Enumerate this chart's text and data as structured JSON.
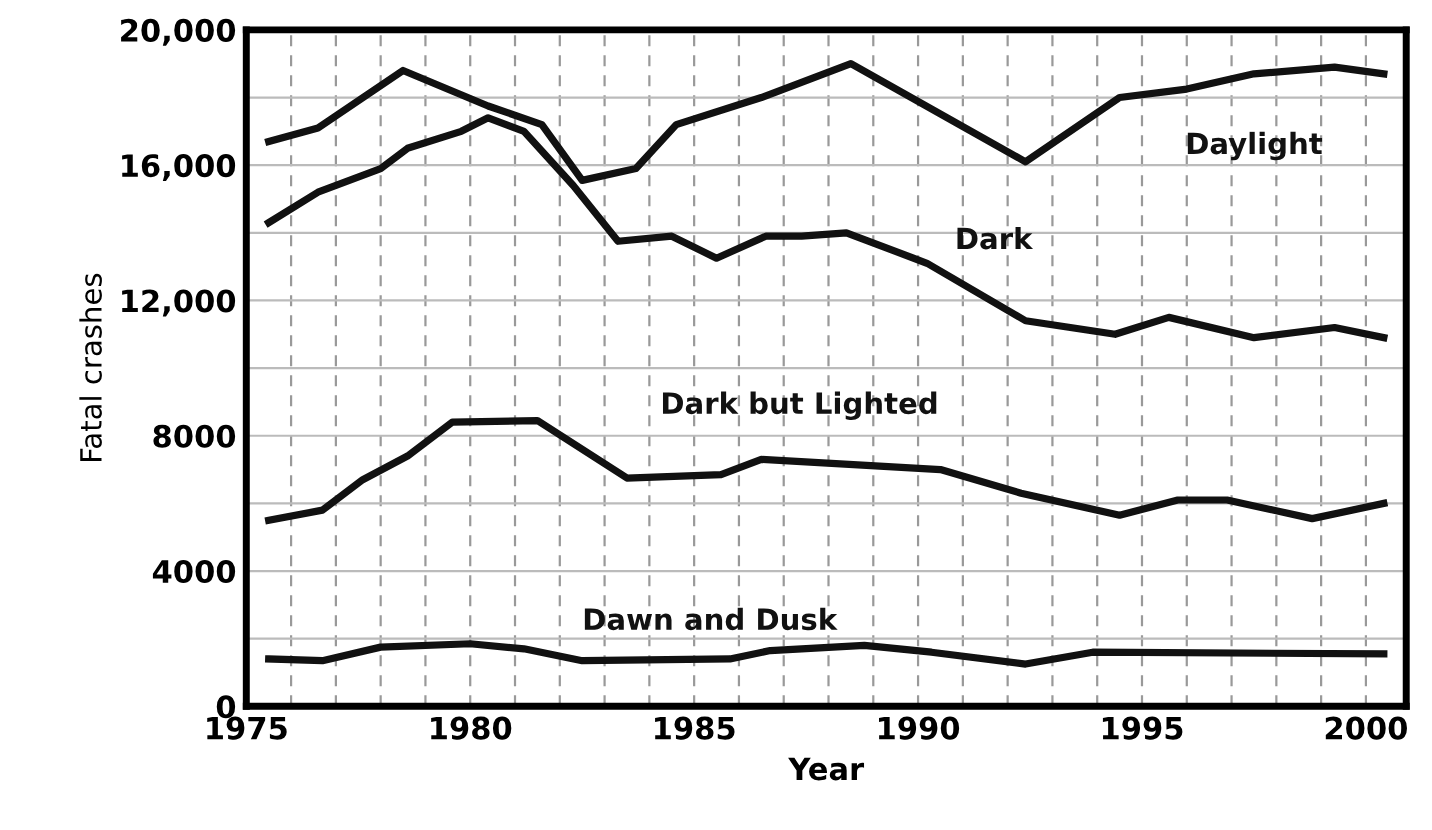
{
  "chart_data": {
    "type": "line",
    "xlabel": "Year",
    "ylabel": "Fatal crashes",
    "xlim": [
      1975,
      2000.9
    ],
    "ylim": [
      0,
      20000
    ],
    "xticks": [
      1975,
      {
        "value": 1976,
        "label": null
      },
      {
        "value": 1977,
        "label": null
      },
      {
        "value": 1978,
        "label": null
      },
      {
        "value": 1979,
        "label": null
      },
      1980,
      {
        "value": 1981,
        "label": null
      },
      {
        "value": 1982,
        "label": null
      },
      {
        "value": 1983,
        "label": null
      },
      {
        "value": 1984,
        "label": null
      },
      1985,
      {
        "value": 1986,
        "label": null
      },
      {
        "value": 1987,
        "label": null
      },
      {
        "value": 1988,
        "label": null
      },
      {
        "value": 1989,
        "label": null
      },
      1990,
      {
        "value": 1991,
        "label": null
      },
      {
        "value": 1992,
        "label": null
      },
      {
        "value": 1993,
        "label": null
      },
      {
        "value": 1994,
        "label": null
      },
      1995,
      {
        "value": 1996,
        "label": null
      },
      {
        "value": 1997,
        "label": null
      },
      {
        "value": 1998,
        "label": null
      },
      {
        "value": 1999,
        "label": null
      },
      2000
    ],
    "yticks": [
      0,
      {
        "value": 2000,
        "label": null
      },
      4000,
      {
        "value": 6000,
        "label": null
      },
      8000,
      {
        "value": 10000,
        "label": null
      },
      {
        "value": 12000,
        "label": "12,000"
      },
      {
        "value": 14000,
        "label": null
      },
      {
        "value": 16000,
        "label": "16,000"
      },
      {
        "value": 18000,
        "label": null
      },
      {
        "value": 20000,
        "label": "20,000"
      }
    ],
    "grid": true,
    "legend": false,
    "marker": "none",
    "line_style": "solid",
    "series": [
      {
        "name": "Daylight",
        "color": "#111111",
        "x": [
          1975.5,
          1976.6,
          1978.5,
          1980.4,
          1981.6,
          1982.5,
          1983.7,
          1984.6,
          1986.5,
          1988.5,
          1992.4,
          1994.5,
          1996,
          1997.5,
          1999.3,
          2000.4
        ],
        "values": [
          16700,
          17100,
          18800,
          17750,
          17200,
          15550,
          15900,
          17200,
          18000,
          19000,
          16100,
          18000,
          18250,
          18700,
          18900,
          18700
        ]
      },
      {
        "name": "Dark",
        "color": "#111111",
        "x": [
          1975.5,
          1976.6,
          1978,
          1978.6,
          1979.8,
          1980.4,
          1981.2,
          1982.3,
          1983.3,
          1984.5,
          1985.5,
          1986.6,
          1987.4,
          1988.4,
          1990.2,
          1992.4,
          1994.4,
          1995.6,
          1997.5,
          1999.3,
          2000.4
        ],
        "values": [
          14300,
          15200,
          15900,
          16500,
          17000,
          17400,
          17000,
          15400,
          13750,
          13900,
          13250,
          13900,
          13900,
          14000,
          13100,
          11400,
          11000,
          11500,
          10900,
          11200,
          10900
        ]
      },
      {
        "name": "Dark but Lighted",
        "color": "#111111",
        "x": [
          1975.5,
          1976.7,
          1977.6,
          1978.6,
          1979.6,
          1981.5,
          1983.5,
          1985.6,
          1986.5,
          1990.5,
          1992.3,
          1994.5,
          1995.8,
          1996.9,
          1998.8,
          2000.4
        ],
        "values": [
          5500,
          5800,
          6700,
          7400,
          8400,
          8450,
          6750,
          6850,
          7300,
          7000,
          6300,
          5650,
          6100,
          6100,
          5550,
          6000
        ]
      },
      {
        "name": "Dawn and Dusk",
        "color": "#111111",
        "x": [
          1975.5,
          1976.7,
          1978,
          1980,
          1981.2,
          1982.5,
          1985.8,
          1986.7,
          1988.8,
          1990.3,
          1992.4,
          1993.9,
          2000.4
        ],
        "values": [
          1400,
          1350,
          1750,
          1850,
          1700,
          1350,
          1400,
          1650,
          1800,
          1600,
          1250,
          1600,
          1550
        ]
      }
    ]
  }
}
